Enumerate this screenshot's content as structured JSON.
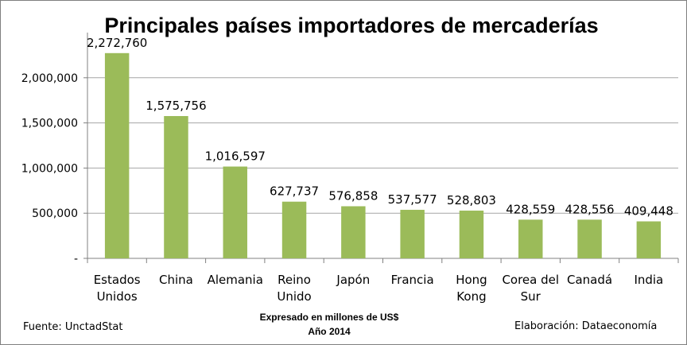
{
  "chart_data": {
    "type": "bar",
    "title": "Principales países importadores de mercaderías",
    "categories": [
      [
        "Estados",
        "Unidos"
      ],
      [
        "China"
      ],
      [
        "Alemania"
      ],
      [
        "Reino",
        "Unido"
      ],
      [
        "Japón"
      ],
      [
        "Francia"
      ],
      [
        "Hong",
        "Kong"
      ],
      [
        "Corea del",
        "Sur"
      ],
      [
        "Canadá"
      ],
      [
        "India"
      ]
    ],
    "values": [
      2272760,
      1575756,
      1016597,
      627737,
      576858,
      537577,
      528803,
      428559,
      428556,
      409448
    ],
    "data_labels": [
      "2,272,760",
      "1,575,756",
      "1,016,597",
      "627,737",
      "576,858",
      "537,577",
      "528,803",
      "428,559",
      "428,556",
      "409,448"
    ],
    "yticks": [
      {
        "value": 0,
        "label": "-"
      },
      {
        "value": 500000,
        "label": "500,000"
      },
      {
        "value": 1000000,
        "label": "1,000,000"
      },
      {
        "value": 1500000,
        "label": "1,500,000"
      },
      {
        "value": 2000000,
        "label": "2,000,000"
      }
    ],
    "ylim": [
      0,
      2500000
    ],
    "grid": true,
    "bar_color": "#9bbb59",
    "grid_color": "#a6a6a6",
    "xlabel": "",
    "ylabel": ""
  },
  "footer": {
    "source": "Fuente: UnctadStat",
    "note_line1": "Expresado en millones de US$",
    "note_line2": "Año 2014",
    "credit": "Elaboración: Dataeconomía"
  }
}
